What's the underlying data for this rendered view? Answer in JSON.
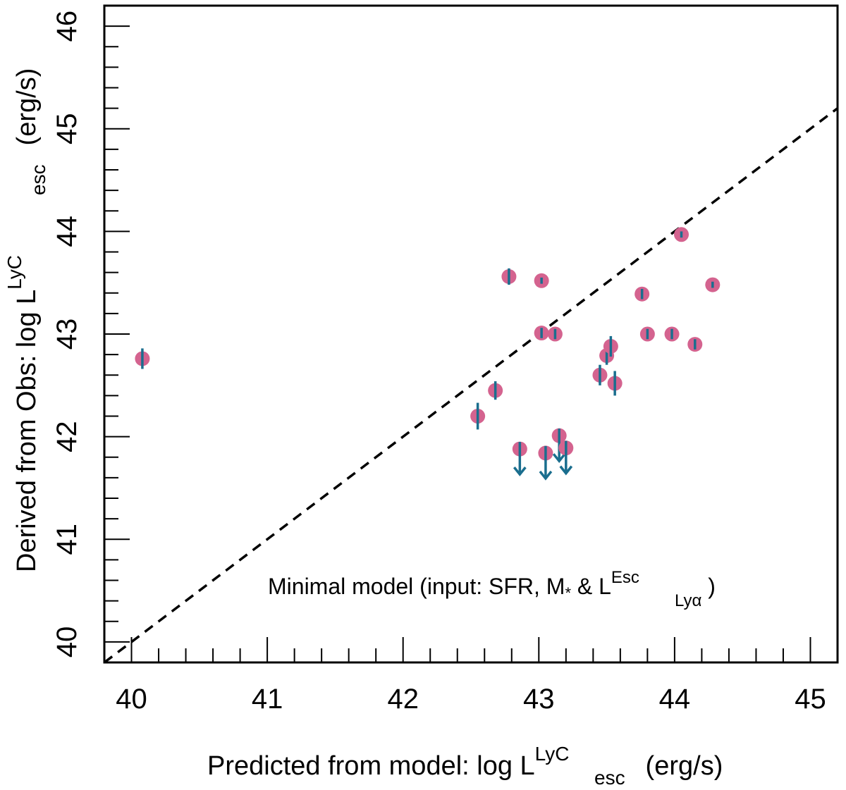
{
  "chart_data": {
    "type": "scatter",
    "title": "",
    "xlabel": {
      "prefix": "Predicted from model: log L",
      "sup": "LyC",
      "sub": "esc",
      "suffix": " (erg/s)"
    },
    "ylabel": {
      "prefix": "Derived from Obs: log L",
      "sup": "LyC",
      "sub": "esc",
      "suffix": " (erg/s)"
    },
    "xlim": [
      39.8,
      45.2
    ],
    "ylim": [
      39.8,
      46.2
    ],
    "xticks": [
      "40",
      "41",
      "42",
      "43",
      "44",
      "45"
    ],
    "yticks": [
      "40",
      "41",
      "42",
      "43",
      "44",
      "45",
      "46"
    ],
    "annotation": {
      "prefix": "Minimal model (input: SFR,  M",
      "msub": "*",
      "mid": " & L",
      "sup": "Esc",
      "sub": "Lyα",
      "suffix": " )"
    },
    "reference_line": {
      "style": "dashed",
      "slope": 1,
      "intercept": 0
    },
    "marker_color": "#d4638f",
    "errorbar_color": "#1a6e8e",
    "points": [
      {
        "x": 40.08,
        "y": 42.76,
        "err": 0.1
      },
      {
        "x": 42.55,
        "y": 42.2,
        "err": 0.13
      },
      {
        "x": 42.68,
        "y": 42.45,
        "err": 0.09
      },
      {
        "x": 42.78,
        "y": 43.56,
        "err": 0.08
      },
      {
        "x": 43.02,
        "y": 43.52,
        "err": 0.03
      },
      {
        "x": 43.02,
        "y": 43.01,
        "err": 0.05
      },
      {
        "x": 43.12,
        "y": 43.0,
        "err": 0.05
      },
      {
        "x": 43.45,
        "y": 42.6,
        "err": 0.1
      },
      {
        "x": 43.5,
        "y": 42.79,
        "err": 0.09
      },
      {
        "x": 43.53,
        "y": 42.88,
        "err": 0.1
      },
      {
        "x": 43.56,
        "y": 42.52,
        "err": 0.12
      },
      {
        "x": 43.76,
        "y": 43.39,
        "err": 0.05
      },
      {
        "x": 43.8,
        "y": 43.0,
        "err": 0.05
      },
      {
        "x": 43.98,
        "y": 43.0,
        "err": 0.05
      },
      {
        "x": 44.05,
        "y": 43.97,
        "err": 0.03
      },
      {
        "x": 44.15,
        "y": 42.9,
        "err": 0.05
      },
      {
        "x": 44.28,
        "y": 43.48,
        "err": 0.03
      }
    ],
    "upper_limits": [
      {
        "x": 42.86,
        "y": 41.88
      },
      {
        "x": 43.05,
        "y": 41.84
      },
      {
        "x": 43.15,
        "y": 42.01
      },
      {
        "x": 43.2,
        "y": 41.89
      }
    ]
  }
}
